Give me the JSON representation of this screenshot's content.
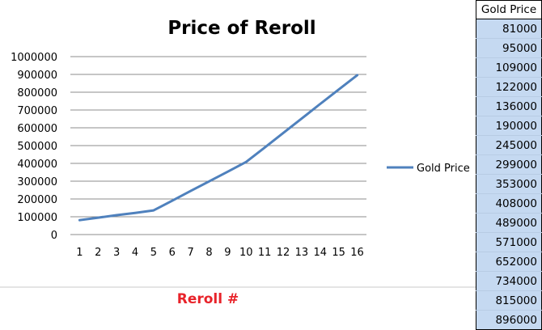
{
  "chart_data": {
    "type": "line",
    "title": "Price of Reroll",
    "xlabel": "Reroll #",
    "ylabel": "",
    "x": [
      1,
      2,
      3,
      4,
      5,
      6,
      7,
      8,
      9,
      10,
      11,
      12,
      13,
      14,
      15,
      16
    ],
    "ylim": [
      0,
      1000000
    ],
    "yticks": [
      "0",
      "100000",
      "200000",
      "300000",
      "400000",
      "500000",
      "600000",
      "700000",
      "800000",
      "900000",
      "1000000"
    ],
    "series": [
      {
        "name": "Gold Price",
        "color": "#4f81bd",
        "values": [
          81000,
          95000,
          109000,
          122000,
          136000,
          190000,
          245000,
          299000,
          353000,
          408000,
          489000,
          571000,
          652000,
          734000,
          815000,
          896000
        ]
      }
    ],
    "grid": true,
    "legend": "right",
    "xlabel_color": "#e8232a"
  },
  "table": {
    "header": "Gold Price",
    "rows": [
      "81000",
      "95000",
      "109000",
      "122000",
      "136000",
      "190000",
      "245000",
      "299000",
      "353000",
      "408000",
      "489000",
      "571000",
      "652000",
      "734000",
      "815000",
      "896000"
    ]
  }
}
